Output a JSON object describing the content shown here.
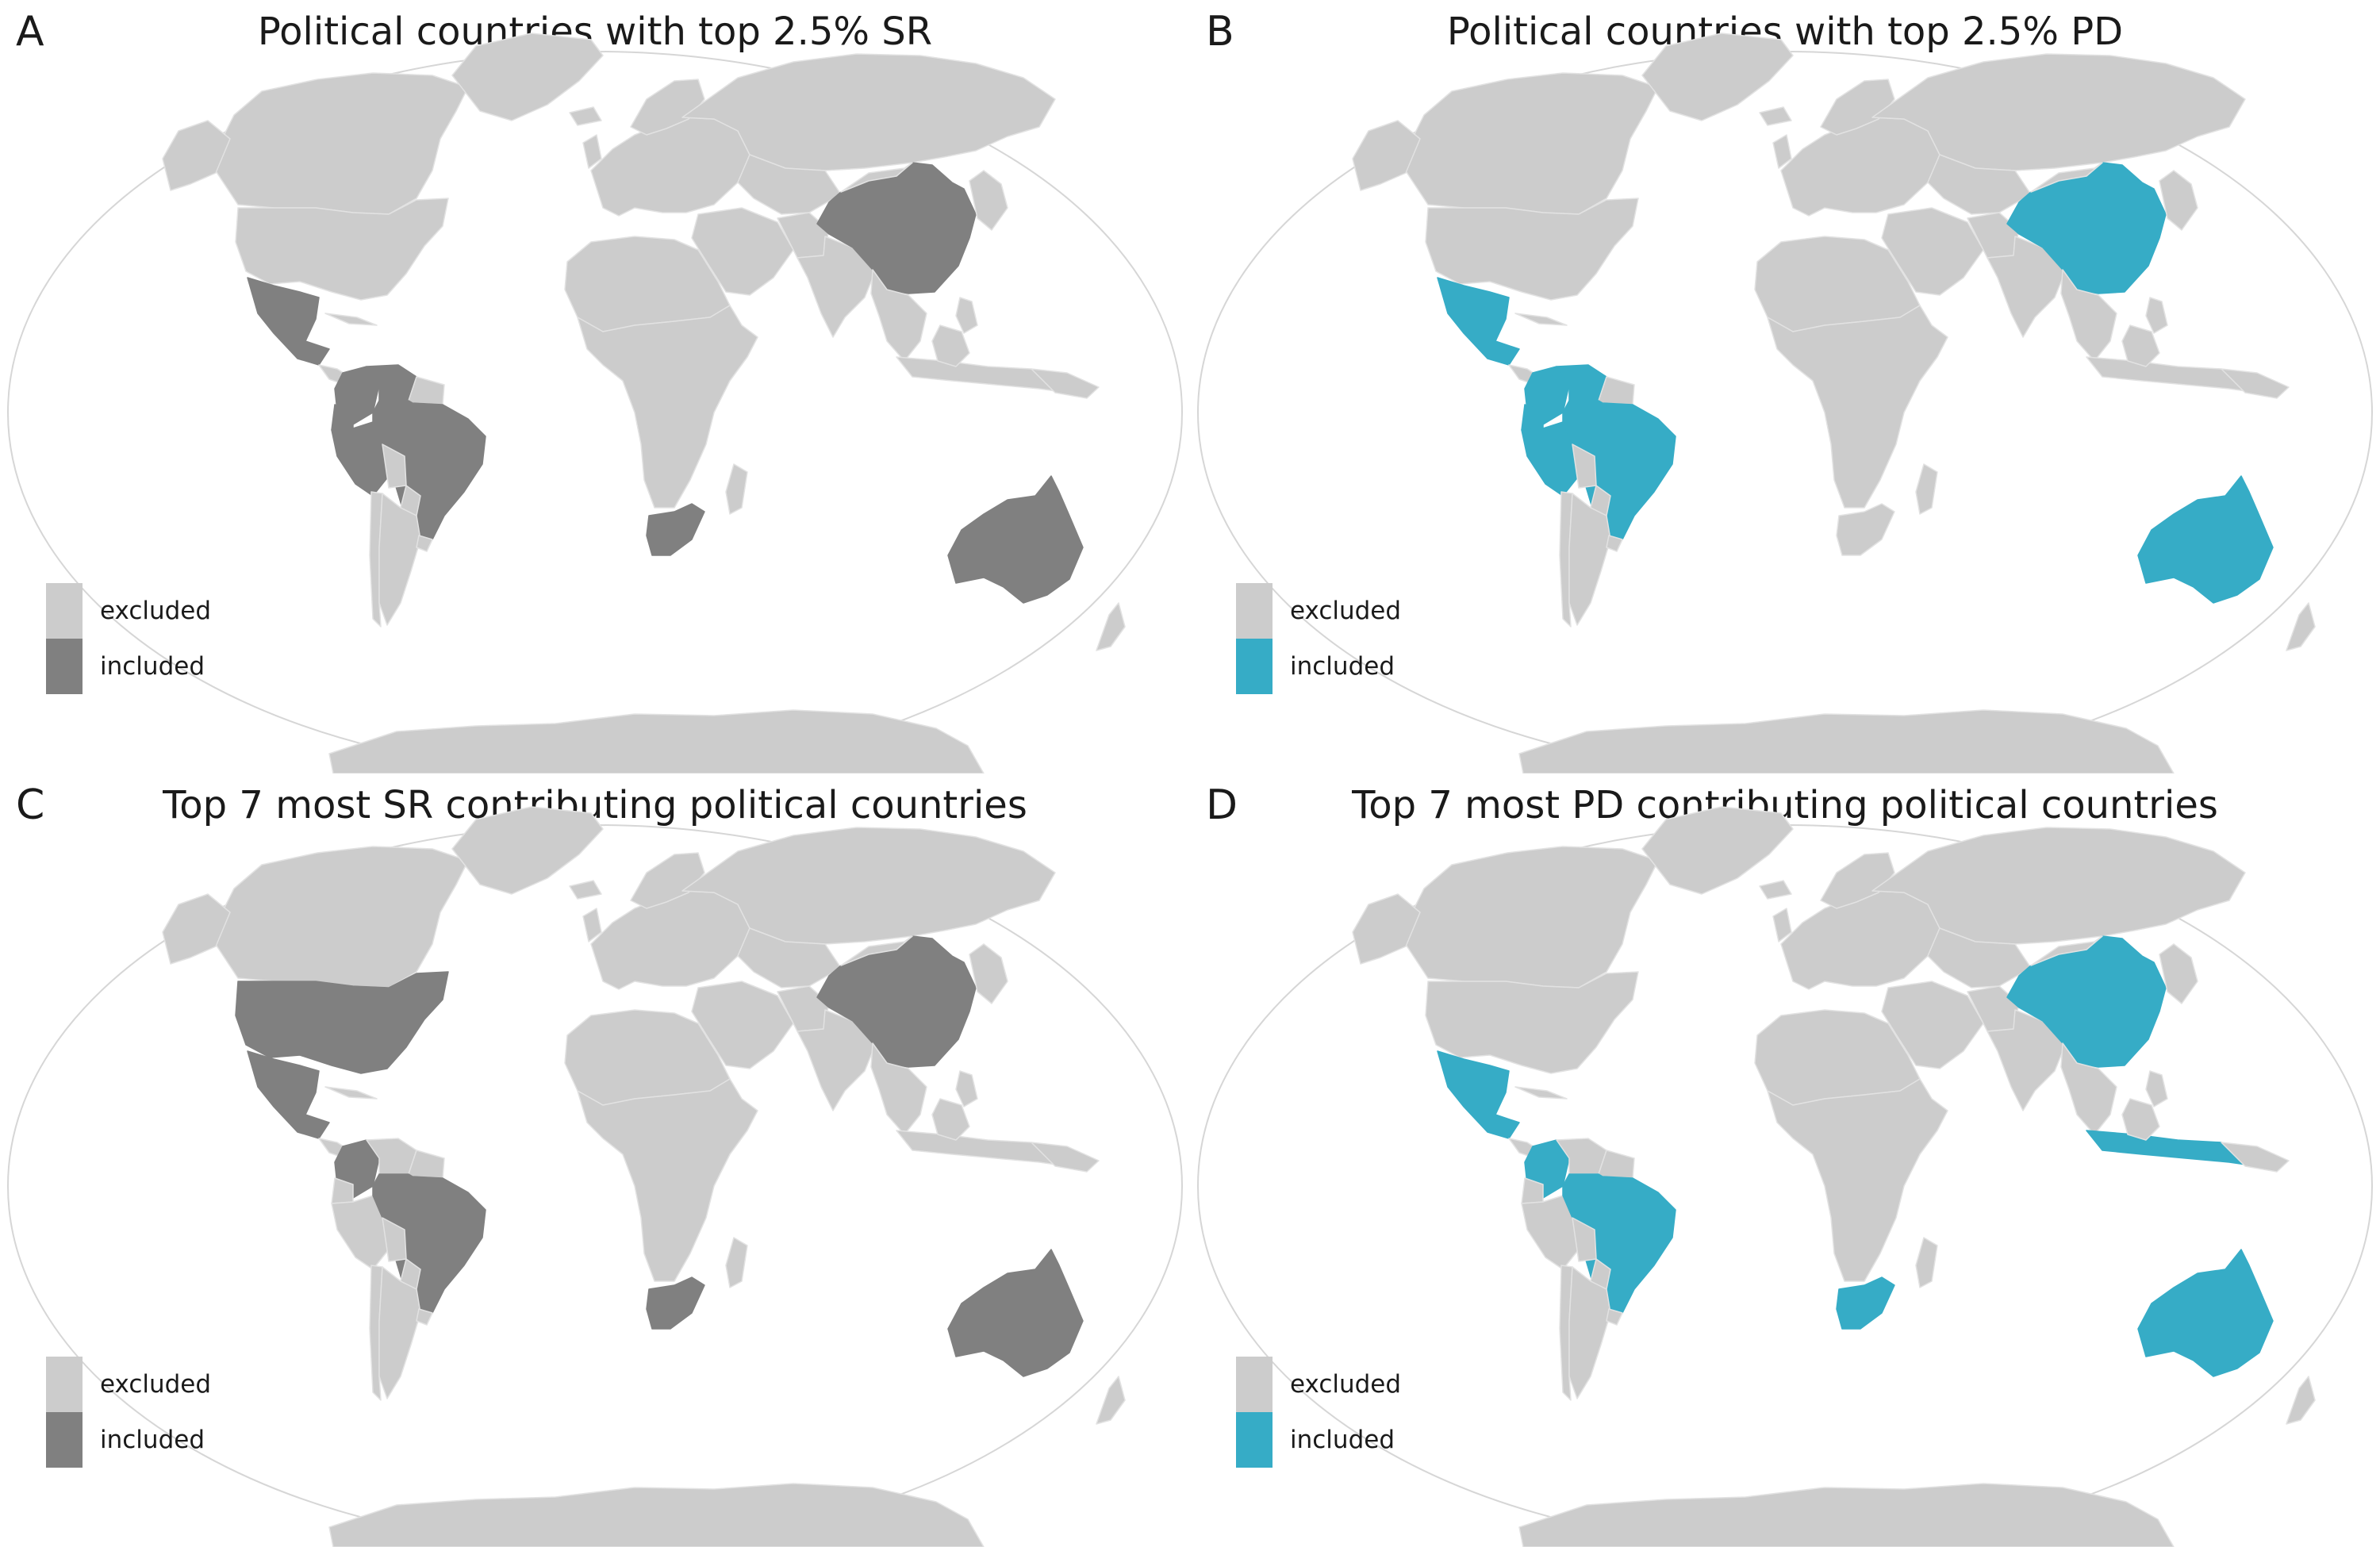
{
  "colors": {
    "excluded": "#cccccc",
    "border": "#e2e2e2",
    "globe_outline": "#d6d6d6",
    "included_gray": "#808080",
    "included_teal": "#36acc6"
  },
  "legend": {
    "excluded_label": "excluded",
    "included_label": "included"
  },
  "panels": [
    {
      "letter": "A",
      "title": "Political countries with top 2.5% SR",
      "included_color": "#808080",
      "included_countries": [
        "Mexico",
        "Colombia",
        "Venezuela",
        "Ecuador",
        "Peru",
        "Brazil",
        "China",
        "South Africa",
        "Australia"
      ]
    },
    {
      "letter": "B",
      "title": "Political countries with top 2.5% PD",
      "included_color": "#36acc6",
      "included_countries": [
        "Mexico",
        "Colombia",
        "Venezuela",
        "Ecuador",
        "Peru",
        "Brazil",
        "China",
        "Australia"
      ]
    },
    {
      "letter": "C",
      "title": "Top 7 most SR contributing political countries",
      "included_color": "#808080",
      "included_countries": [
        "United States",
        "Mexico",
        "Colombia",
        "Brazil",
        "China",
        "South Africa",
        "Australia"
      ]
    },
    {
      "letter": "D",
      "title": "Top 7 most PD contributing political countries",
      "included_color": "#36acc6",
      "included_countries": [
        "Mexico",
        "Colombia",
        "Brazil",
        "China",
        "Indonesia",
        "South Africa",
        "Australia"
      ]
    }
  ]
}
